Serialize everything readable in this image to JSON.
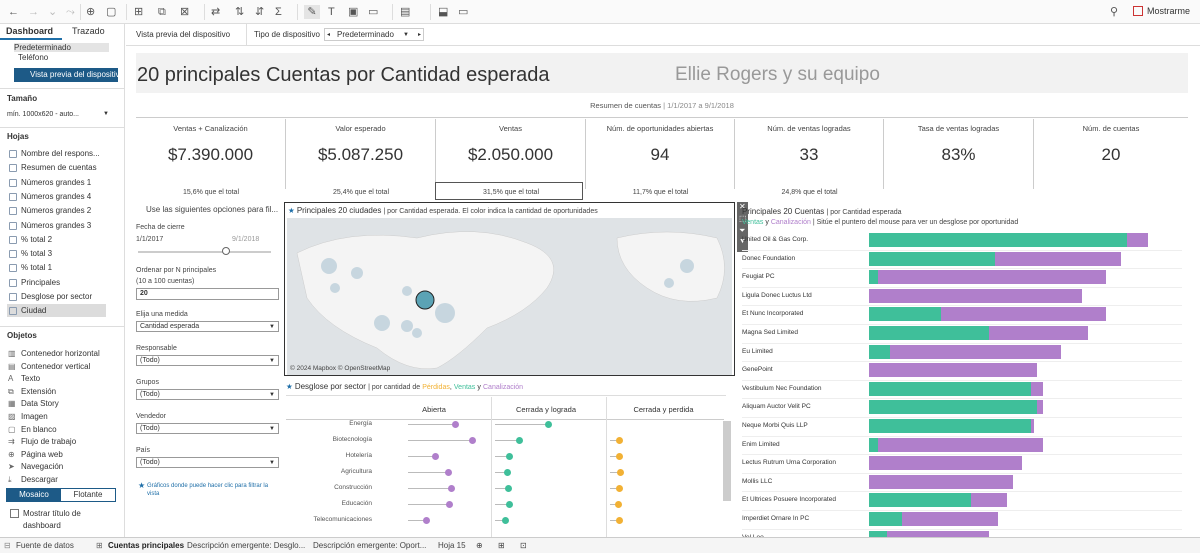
{
  "toolbar": {
    "show_me": "Mostrarme"
  },
  "sidebar": {
    "tab_dashboard": "Dashboard",
    "tab_layout": "Trazado",
    "devices": [
      "Predeterminado",
      "Teléfono"
    ],
    "device_preview_button": "Vista previa del dispositivo",
    "size_header": "Tamaño",
    "size_value": "mín. 1000x620 - auto...",
    "sheets_header": "Hojas",
    "sheets": [
      "Nombre del respons...",
      "Resumen de cuentas",
      "Números grandes 1",
      "Números grandes 4",
      "Números grandes 2",
      "Números grandes 3",
      "% total 2",
      "% total 3",
      "% total 1",
      "Principales",
      "Desglose por sector",
      "Ciudad"
    ],
    "objects_header": "Objetos",
    "objects": [
      "Contenedor horizontal",
      "Contenedor vertical",
      "Texto",
      "Extensión",
      "Data Story",
      "Imagen",
      "En blanco",
      "Flujo de trabajo",
      "Página web",
      "Navegación",
      "Descargar"
    ],
    "mode_tiled": "Mosaico",
    "mode_floating": "Flotante",
    "show_title": "Mostrar título de dashboard"
  },
  "topbar": {
    "preview_label": "Vista previa del dispositivo",
    "device_type_label": "Tipo de dispositivo",
    "device_value": "Predeterminado"
  },
  "dashboard": {
    "title": "20 principales Cuentas por Cantidad esperada",
    "subtitle": "Ellie Rogers y su equipo",
    "summary_prefix": "Resumen de cuentas",
    "summary_dates": "| 1/1/2017 a 9/1/2018",
    "kpis": [
      {
        "label": "Ventas + Canalización",
        "value": "$7.390.000",
        "pct": "15,6% que el total"
      },
      {
        "label": "Valor esperado",
        "value": "$5.087.250",
        "pct": "25,4% que el total"
      },
      {
        "label": "Ventas",
        "value": "$2.050.000",
        "pct": "31,5% que el total"
      },
      {
        "label": "Núm. de oportunidades abiertas",
        "value": "94",
        "pct": "11,7% que el total"
      },
      {
        "label": "Núm. de ventas logradas",
        "value": "33",
        "pct": "24,8% que el total"
      },
      {
        "label": "Tasa de ventas logradas",
        "value": "83%",
        "pct": ""
      },
      {
        "label": "Núm. de cuentas",
        "value": "20",
        "pct": ""
      }
    ],
    "filters": {
      "intro": "Use las siguientes opciones para fil...",
      "date_label": "Fecha de cierre",
      "date_start": "1/1/2017",
      "date_end": "9/1/2018",
      "topn_label": "Ordenar por N principales",
      "topn_hint": "(10 a 100 cuentas)",
      "topn_value": "20",
      "measure_label": "Elija una medida",
      "measure_value": "Cantidad esperada",
      "owner_label": "Responsable",
      "owner_value": "(Todo)",
      "groups_label": "Grupos",
      "groups_value": "(Todo)",
      "seller_label": "Vendedor",
      "seller_value": "(Todo)",
      "country_label": "País",
      "country_value": "(Todo)",
      "footnote": "Gráficos donde puede hacer clic para filtrar la vista"
    },
    "map": {
      "title": "Principales 20 ciudades",
      "subtitle": "| por Cantidad esperada. El color indica la cantidad de oportunidades",
      "attribution": "© 2024 Mapbox  © OpenStreetMap"
    },
    "sector": {
      "title": "Desglose por sector",
      "sub_prefix": "| por cantidad de",
      "legend_lost": "Pérdidas",
      "legend_sales": "Ventas",
      "legend_y": "y",
      "legend_pipeline": "Canalización",
      "columns": [
        "Abierta",
        "Cerrada y lograda",
        "Cerrada y perdida"
      ]
    },
    "accounts": {
      "title": "Principales 20 Cuentas",
      "subtitle": "| por Cantidad esperada",
      "legend_sales": "Ventas",
      "legend_y": "y",
      "legend_pipeline": "Canalización",
      "legend_hint": "| Sitúe el puntero del mouse para ver un desglose por oportunidad"
    }
  },
  "chart_data": [
    {
      "type": "bar",
      "title": "Principales 20 Cuentas",
      "categories": [
        "United Oil & Gas Corp.",
        "Donec Foundation",
        "Feugiat PC",
        "Ligula Donec Luctus Ltd",
        "Et Nunc Incorporated",
        "Magna Sed Limited",
        "Eu Limited",
        "GenePoint",
        "Vestibulum Nec Foundation",
        "Aliquam Auctor Velit PC",
        "Neque Morbi Quis LLP",
        "Enim Limited",
        "Lectus Rutrum Urna Corporation",
        "Mollis LLC",
        "Et Ultrices Posuere Incorporated",
        "Imperdiet Ornare In PC",
        "Vel Leo"
      ],
      "series": [
        {
          "name": "Ventas",
          "color": "#3fbf9a",
          "values": [
            0.86,
            0.42,
            0.03,
            0,
            0.24,
            0.4,
            0.07,
            0,
            0.54,
            0.56,
            0.54,
            0.03,
            0,
            0,
            0.34,
            0.11,
            0.06
          ]
        },
        {
          "name": "Canalización",
          "color": "#b07fcb",
          "values": [
            0.07,
            0.42,
            0.76,
            0.71,
            0.55,
            0.33,
            0.57,
            0.56,
            0.04,
            0.02,
            0.01,
            0.55,
            0.51,
            0.48,
            0.12,
            0.32,
            0.34
          ]
        }
      ]
    },
    {
      "type": "scatter",
      "title": "Desglose por sector",
      "categories": [
        "Energía",
        "Biotecnología",
        "Hotelería",
        "Agricultura",
        "Construcción",
        "Educación",
        "Telecomunicaciones"
      ],
      "series": [
        {
          "name": "Abierta",
          "color": "#b07fcb",
          "values": [
            0.6,
            0.85,
            0.32,
            0.5,
            0.55,
            0.52,
            0.2
          ]
        },
        {
          "name": "Cerrada y lograda",
          "color": "#3fbf9a",
          "values": [
            0.5,
            0.2,
            0.1,
            0.08,
            0.09,
            0.1,
            0.06
          ]
        },
        {
          "name": "Cerrada y perdida",
          "color": "#f2b134",
          "values": [
            0,
            0.05,
            0.05,
            0.06,
            0.05,
            0.04,
            0.05
          ]
        }
      ]
    }
  ]
}
